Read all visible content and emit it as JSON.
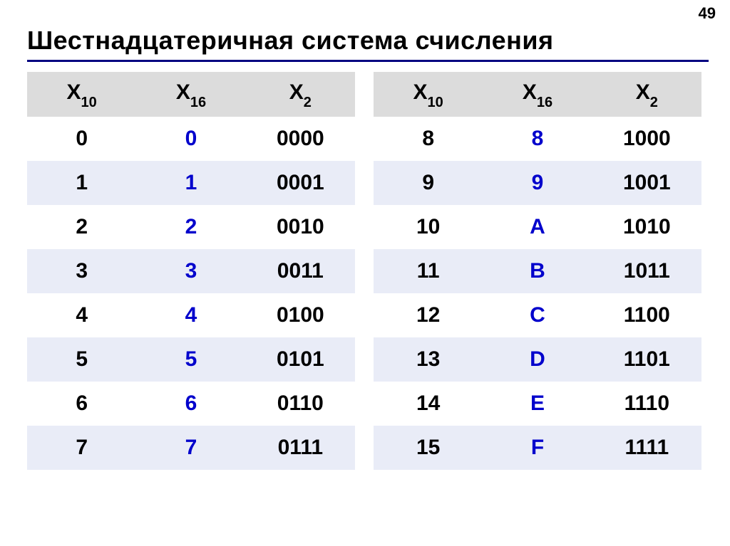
{
  "page_number": "49",
  "title": "Шестнадцатеричная система счисления",
  "colors": {
    "title_rule": "#000080",
    "header_bg": "#dcdcdc",
    "row_alt_bg": "#e9ecf7",
    "hex_text": "#0000cc",
    "text": "#000000",
    "background": "#ffffff"
  },
  "typography": {
    "title_fontsize": 36,
    "header_fontsize": 30,
    "cell_fontsize": 30,
    "subscript_fontsize": 20,
    "font_family": "Arial"
  },
  "columns": [
    {
      "base_letter": "X",
      "subscript": "10"
    },
    {
      "base_letter": "X",
      "subscript": "16"
    },
    {
      "base_letter": "X",
      "subscript": "2"
    }
  ],
  "left_table": {
    "rows": [
      {
        "dec": "0",
        "hex": "0",
        "bin": "0000"
      },
      {
        "dec": "1",
        "hex": "1",
        "bin": "0001"
      },
      {
        "dec": "2",
        "hex": "2",
        "bin": "0010"
      },
      {
        "dec": "3",
        "hex": "3",
        "bin": "0011"
      },
      {
        "dec": "4",
        "hex": "4",
        "bin": "0100"
      },
      {
        "dec": "5",
        "hex": "5",
        "bin": "0101"
      },
      {
        "dec": "6",
        "hex": "6",
        "bin": "0110"
      },
      {
        "dec": "7",
        "hex": "7",
        "bin": "0111"
      }
    ]
  },
  "right_table": {
    "rows": [
      {
        "dec": "8",
        "hex": "8",
        "bin": "1000"
      },
      {
        "dec": "9",
        "hex": "9",
        "bin": "1001"
      },
      {
        "dec": "10",
        "hex": "A",
        "bin": "1010"
      },
      {
        "dec": "11",
        "hex": "B",
        "bin": "1011"
      },
      {
        "dec": "12",
        "hex": "C",
        "bin": "1100"
      },
      {
        "dec": "13",
        "hex": "D",
        "bin": "1101"
      },
      {
        "dec": "14",
        "hex": "E",
        "bin": "1110"
      },
      {
        "dec": "15",
        "hex": "F",
        "bin": "1111"
      }
    ]
  }
}
